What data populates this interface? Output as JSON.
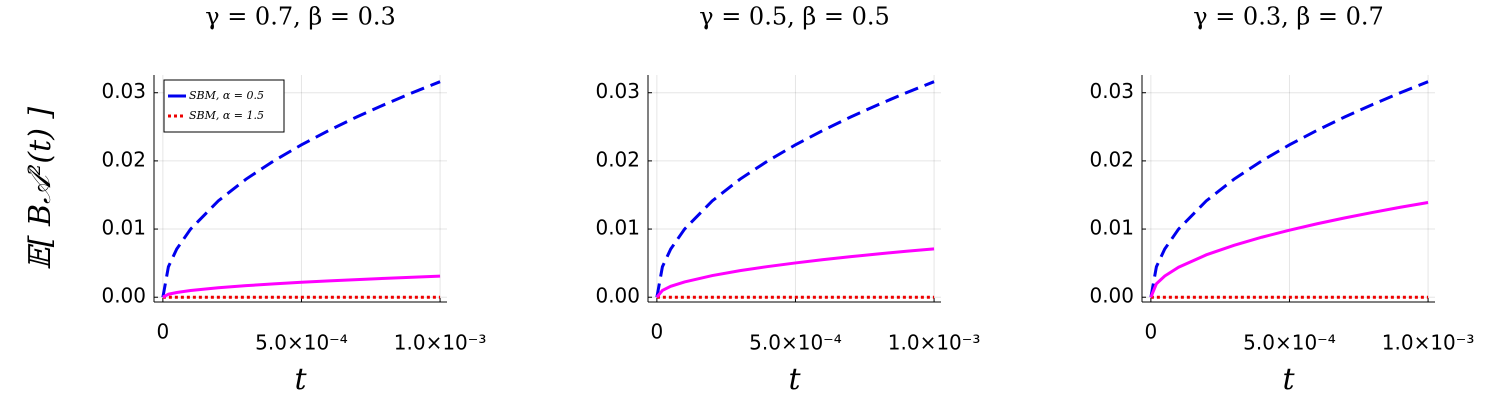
{
  "chart_data": [
    {
      "type": "line",
      "title": "γ = 0.7, β = 0.3",
      "x_label": "t",
      "y_label": "𝔼[ B𝒜²(t) ]",
      "x": [
        0,
        2e-05,
        5e-05,
        0.0001,
        0.0002,
        0.0003,
        0.0004,
        0.0005,
        0.0006,
        0.0007,
        0.0008,
        0.0009,
        0.001
      ],
      "series": [
        {
          "name": "SBM, α = 0.5",
          "color": "#0000ee",
          "style": "dash",
          "values": [
            0,
            0.00447,
            0.00707,
            0.01,
            0.01414,
            0.01732,
            0.02,
            0.02236,
            0.02449,
            0.02646,
            0.02828,
            0.03,
            0.03162
          ]
        },
        {
          "name": "SBM, α = 1.5",
          "color": "#ee0000",
          "style": "dot",
          "values": [
            0,
            0,
            0,
            0,
            0,
            0,
            0,
            0,
            0,
            0,
            0,
            0,
            0
          ]
        },
        {
          "color": "#ff00ff",
          "style": "solid",
          "values": [
            0,
            0.00044,
            0.00069,
            0.00098,
            0.00139,
            0.0017,
            0.00196,
            0.00219,
            0.0024,
            0.00259,
            0.00277,
            0.00294,
            0.0031
          ]
        }
      ],
      "xlim": [
        -3.2e-05,
        0.001025
      ],
      "ylim": [
        -0.0007,
        0.0326
      ],
      "xticks": [
        {
          "value": 0,
          "label": "0"
        },
        {
          "value": 0.0005,
          "label": "5.0×10⁻⁴"
        },
        {
          "value": 0.001,
          "label": "1.0×10⁻³"
        }
      ],
      "yticks": [
        {
          "value": 0,
          "label": "0.00"
        },
        {
          "value": 0.01,
          "label": "0.01"
        },
        {
          "value": 0.02,
          "label": "0.02"
        },
        {
          "value": 0.03,
          "label": "0.03"
        }
      ],
      "grid": true,
      "legend": "top-left"
    },
    {
      "type": "line",
      "title": "γ = 0.5, β = 0.5",
      "x_label": "t",
      "x": [
        0,
        2e-05,
        5e-05,
        0.0001,
        0.0002,
        0.0003,
        0.0004,
        0.0005,
        0.0006,
        0.0007,
        0.0008,
        0.0009,
        0.001
      ],
      "series": [
        {
          "color": "#0000ee",
          "style": "dash",
          "values": [
            0,
            0.00447,
            0.00707,
            0.01,
            0.01414,
            0.01732,
            0.02,
            0.02236,
            0.02449,
            0.02646,
            0.02828,
            0.03,
            0.03162
          ]
        },
        {
          "color": "#ee0000",
          "style": "dot",
          "values": [
            0,
            0,
            0,
            0,
            0,
            0,
            0,
            0,
            0,
            0,
            0,
            0,
            0
          ]
        },
        {
          "color": "#ff00ff",
          "style": "solid",
          "values": [
            0,
            0.001,
            0.0016,
            0.00225,
            0.00318,
            0.0039,
            0.0045,
            0.00503,
            0.00551,
            0.00595,
            0.00636,
            0.00675,
            0.0071
          ]
        }
      ],
      "xlim": [
        -3.2e-05,
        0.001025
      ],
      "ylim": [
        -0.0007,
        0.0326
      ],
      "xticks": [
        {
          "value": 0,
          "label": "0"
        },
        {
          "value": 0.0005,
          "label": "5.0×10⁻⁴"
        },
        {
          "value": 0.001,
          "label": "1.0×10⁻³"
        }
      ],
      "yticks": [
        {
          "value": 0,
          "label": "0.00"
        },
        {
          "value": 0.01,
          "label": "0.01"
        },
        {
          "value": 0.02,
          "label": "0.02"
        },
        {
          "value": 0.03,
          "label": "0.03"
        }
      ],
      "grid": true
    },
    {
      "type": "line",
      "title": "γ = 0.3, β = 0.7",
      "x_label": "t",
      "x": [
        0,
        2e-05,
        5e-05,
        0.0001,
        0.0002,
        0.0003,
        0.0004,
        0.0005,
        0.0006,
        0.0007,
        0.0008,
        0.0009,
        0.001
      ],
      "series": [
        {
          "color": "#0000ee",
          "style": "dash",
          "values": [
            0,
            0.00447,
            0.00707,
            0.01,
            0.01414,
            0.01732,
            0.02,
            0.02236,
            0.02449,
            0.02646,
            0.02828,
            0.03,
            0.03162
          ]
        },
        {
          "color": "#ee0000",
          "style": "dot",
          "values": [
            0,
            0,
            0,
            0,
            0,
            0,
            0,
            0,
            0,
            0,
            0,
            0,
            0
          ]
        },
        {
          "color": "#ff00ff",
          "style": "solid",
          "values": [
            0,
            0.00197,
            0.00311,
            0.0044,
            0.00622,
            0.00762,
            0.0088,
            0.00984,
            0.01078,
            0.01164,
            0.01244,
            0.0132,
            0.0139
          ]
        }
      ],
      "xlim": [
        -3.2e-05,
        0.001025
      ],
      "ylim": [
        -0.0007,
        0.0326
      ],
      "xticks": [
        {
          "value": 0,
          "label": "0"
        },
        {
          "value": 0.0005,
          "label": "5.0×10⁻⁴"
        },
        {
          "value": 0.001,
          "label": "1.0×10⁻³"
        }
      ],
      "yticks": [
        {
          "value": 0,
          "label": "0.00"
        },
        {
          "value": 0.01,
          "label": "0.01"
        },
        {
          "value": 0.02,
          "label": "0.02"
        },
        {
          "value": 0.03,
          "label": "0.03"
        }
      ],
      "grid": true
    }
  ]
}
